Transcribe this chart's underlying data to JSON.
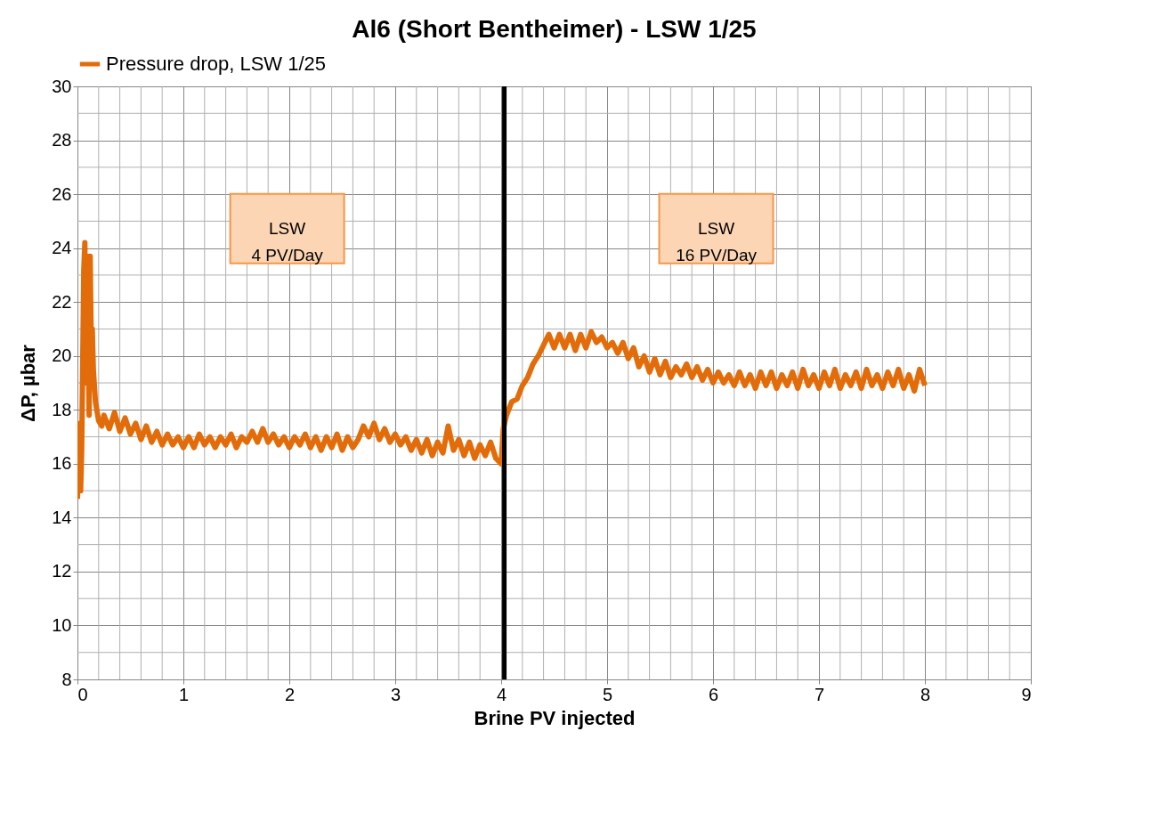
{
  "chart_data": {
    "type": "line",
    "title": "Al6 (Short Bentheimer) - LSW 1/25",
    "xlabel": "Brine PV injected",
    "ylabel": "ΔP, µbar",
    "series": [
      {
        "name": "Pressure drop, LSW 1/25",
        "color": "#e36c0a",
        "x": [
          0,
          0.02,
          0.03,
          0.04,
          0.06,
          0.07,
          0.08,
          0.09,
          0.1,
          0.11,
          0.12,
          0.13,
          0.14,
          0.15,
          0.17,
          0.2,
          0.23,
          0.25,
          0.3,
          0.35,
          0.4,
          0.45,
          0.5,
          0.55,
          0.6,
          0.65,
          0.7,
          0.75,
          0.8,
          0.85,
          0.9,
          0.95,
          1.0,
          1.05,
          1.1,
          1.15,
          1.2,
          1.25,
          1.3,
          1.35,
          1.4,
          1.45,
          1.5,
          1.55,
          1.6,
          1.65,
          1.7,
          1.75,
          1.8,
          1.85,
          1.9,
          1.95,
          2.0,
          2.05,
          2.1,
          2.15,
          2.2,
          2.25,
          2.3,
          2.35,
          2.4,
          2.45,
          2.5,
          2.55,
          2.6,
          2.65,
          2.7,
          2.75,
          2.8,
          2.85,
          2.9,
          2.95,
          3.0,
          3.05,
          3.1,
          3.15,
          3.2,
          3.25,
          3.3,
          3.35,
          3.4,
          3.45,
          3.5,
          3.55,
          3.6,
          3.65,
          3.7,
          3.75,
          3.8,
          3.85,
          3.9,
          3.95,
          4.0,
          4.02,
          4.05,
          4.1,
          4.15,
          4.2,
          4.25,
          4.3,
          4.35,
          4.4,
          4.45,
          4.5,
          4.55,
          4.6,
          4.65,
          4.7,
          4.75,
          4.8,
          4.85,
          4.9,
          4.95,
          5.0,
          5.05,
          5.1,
          5.15,
          5.2,
          5.25,
          5.3,
          5.35,
          5.4,
          5.45,
          5.5,
          5.55,
          5.6,
          5.65,
          5.7,
          5.75,
          5.8,
          5.85,
          5.9,
          5.95,
          6.0,
          6.05,
          6.1,
          6.15,
          6.2,
          6.25,
          6.3,
          6.35,
          6.4,
          6.45,
          6.5,
          6.55,
          6.6,
          6.65,
          6.7,
          6.75,
          6.8,
          6.85,
          6.9,
          6.95,
          7.0,
          7.05,
          7.1,
          7.15,
          7.2,
          7.25,
          7.3,
          7.35,
          7.4,
          7.45,
          7.5,
          7.55,
          7.6,
          7.65,
          7.7,
          7.75,
          7.8,
          7.85,
          7.9,
          7.95,
          8.0
        ],
        "values": [
          14.7,
          17.5,
          15.0,
          16.5,
          23.2,
          24.2,
          19.0,
          23.7,
          21.5,
          17.8,
          23.7,
          20.5,
          21.0,
          19.5,
          18.3,
          17.6,
          17.4,
          17.8,
          17.3,
          17.9,
          17.2,
          17.7,
          17.1,
          17.5,
          16.9,
          17.4,
          16.8,
          17.2,
          16.7,
          17.1,
          16.7,
          17.0,
          16.6,
          17.0,
          16.6,
          17.1,
          16.7,
          17.0,
          16.6,
          17.0,
          16.7,
          17.1,
          16.6,
          17.0,
          16.8,
          17.2,
          16.8,
          17.3,
          16.8,
          17.1,
          16.7,
          17.0,
          16.6,
          17.0,
          16.7,
          17.1,
          16.6,
          17.0,
          16.5,
          17.0,
          16.6,
          17.1,
          16.5,
          17.0,
          16.6,
          16.9,
          17.4,
          17.0,
          17.5,
          16.9,
          17.3,
          16.8,
          17.1,
          16.7,
          17.0,
          16.5,
          16.9,
          16.4,
          16.9,
          16.3,
          16.8,
          16.4,
          17.4,
          16.5,
          16.9,
          16.3,
          16.8,
          16.2,
          16.7,
          16.3,
          16.8,
          16.2,
          16.0,
          17.3,
          17.8,
          18.3,
          18.4,
          18.9,
          19.2,
          19.7,
          20.0,
          20.4,
          20.8,
          20.3,
          20.8,
          20.3,
          20.8,
          20.2,
          20.8,
          20.3,
          20.9,
          20.5,
          20.7,
          20.3,
          20.5,
          20.1,
          20.5,
          19.9,
          20.3,
          19.6,
          20.0,
          19.4,
          19.9,
          19.3,
          19.8,
          19.2,
          19.6,
          19.3,
          19.7,
          19.2,
          19.6,
          19.1,
          19.5,
          19.0,
          19.4,
          19.0,
          19.3,
          18.9,
          19.4,
          18.9,
          19.3,
          18.8,
          19.4,
          18.9,
          19.4,
          18.8,
          19.3,
          18.9,
          19.4,
          18.8,
          19.5,
          18.9,
          19.3,
          18.8,
          19.4,
          18.9,
          19.5,
          18.8,
          19.3,
          18.9,
          19.4,
          18.8,
          19.5,
          18.9,
          19.3,
          18.8,
          19.4,
          18.9,
          19.5,
          18.8,
          19.3,
          18.7,
          19.5,
          18.9
        ]
      }
    ],
    "xlim": [
      0,
      9
    ],
    "xticks": [
      0,
      1,
      2,
      3,
      4,
      5,
      6,
      7,
      8,
      9
    ],
    "ylim": [
      8,
      30
    ],
    "yticks": [
      8,
      10,
      12,
      14,
      16,
      18,
      20,
      22,
      24,
      26,
      28,
      30
    ],
    "grid": true,
    "legend": "top",
    "ref_lines": [
      {
        "axis": "x",
        "value": 4.03,
        "color": "#000000"
      }
    ],
    "annotations": [
      "LSW\n4 PV/Day",
      "LSW\n16 PV/Day"
    ]
  }
}
